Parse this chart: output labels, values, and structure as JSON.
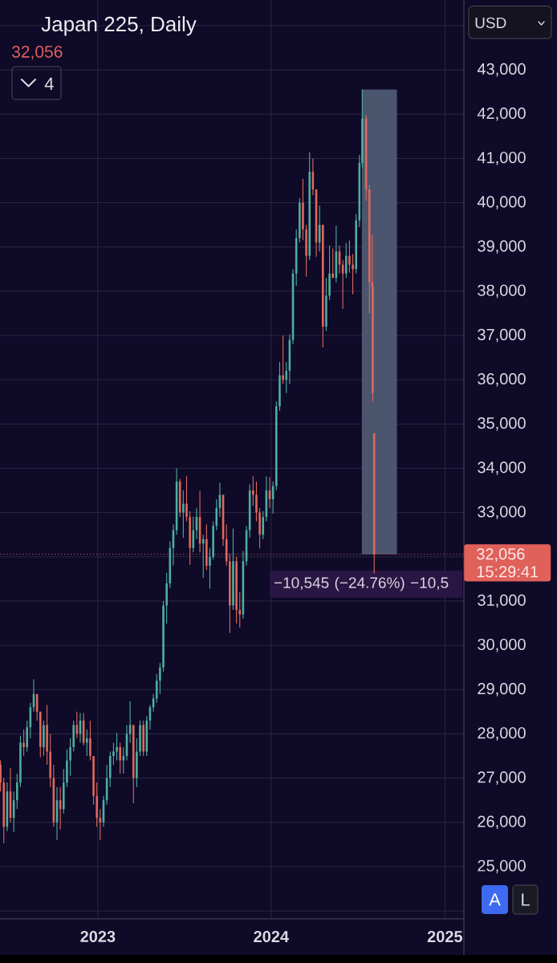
{
  "chart_data": {
    "type": "candlestick",
    "title": "Japan 225, Daily",
    "subtitle": "32,056",
    "annotations": [
      "15:29:41",
      "USD",
      "4",
      "A",
      "L"
    ],
    "x": [
      "2022-06-10",
      "2022-06-17",
      "2022-06-24",
      "2022-07-01",
      "2022-07-08",
      "2022-07-15",
      "2022-07-22",
      "2022-07-29",
      "2022-08-05",
      "2022-08-12",
      "2022-08-19",
      "2022-08-26",
      "2022-09-02",
      "2022-09-09",
      "2022-09-16",
      "2022-09-23",
      "2022-09-30",
      "2022-10-07",
      "2022-10-14",
      "2022-10-21",
      "2022-10-28",
      "2022-11-04",
      "2022-11-11",
      "2022-11-18",
      "2022-11-25",
      "2022-12-02",
      "2022-12-09",
      "2022-12-16",
      "2022-12-23",
      "2022-12-30",
      "2023-01-06",
      "2023-01-13",
      "2023-01-20",
      "2023-01-27",
      "2023-02-03",
      "2023-02-10",
      "2023-02-17",
      "2023-02-24",
      "2023-03-03",
      "2023-03-10",
      "2023-03-17",
      "2023-03-24",
      "2023-03-31",
      "2023-04-07",
      "2023-04-14",
      "2023-04-21",
      "2023-04-28",
      "2023-05-05",
      "2023-05-12",
      "2023-05-19",
      "2023-05-26",
      "2023-06-02",
      "2023-06-09",
      "2023-06-16",
      "2023-06-23",
      "2023-06-30",
      "2023-07-07",
      "2023-07-14",
      "2023-07-21",
      "2023-07-28",
      "2023-08-04",
      "2023-08-11",
      "2023-08-18",
      "2023-08-25",
      "2023-09-01",
      "2023-09-08",
      "2023-09-15",
      "2023-09-22",
      "2023-09-29",
      "2023-10-06",
      "2023-10-13",
      "2023-10-20",
      "2023-10-27",
      "2023-11-03",
      "2023-11-10",
      "2023-11-17",
      "2023-11-24",
      "2023-12-01",
      "2023-12-08",
      "2023-12-15",
      "2023-12-22",
      "2023-12-29",
      "2024-01-05",
      "2024-01-12",
      "2024-01-19",
      "2024-01-26",
      "2024-02-02",
      "2024-02-09",
      "2024-02-16",
      "2024-02-23",
      "2024-03-01",
      "2024-03-08",
      "2024-03-15",
      "2024-03-22",
      "2024-03-29",
      "2024-04-05",
      "2024-04-12",
      "2024-04-19",
      "2024-04-26",
      "2024-05-03",
      "2024-05-10",
      "2024-05-17",
      "2024-05-24",
      "2024-05-31",
      "2024-06-07",
      "2024-06-14",
      "2024-06-21",
      "2024-06-28",
      "2024-07-05",
      "2024-07-11",
      "2024-07-19",
      "2024-07-26",
      "2024-08-01",
      "2024-08-02",
      "2024-08-05"
    ],
    "ohlc": [
      [
        27300,
        27400,
        26700,
        26900
      ],
      [
        26900,
        27000,
        25530,
        25900
      ],
      [
        25900,
        26900,
        25800,
        26700
      ],
      [
        26700,
        27230,
        26000,
        26100
      ],
      [
        26100,
        26700,
        25780,
        26500
      ],
      [
        26500,
        27100,
        26300,
        26900
      ],
      [
        26900,
        27960,
        26800,
        27800
      ],
      [
        27800,
        28100,
        27500,
        27700
      ],
      [
        27700,
        28300,
        27600,
        28150
      ],
      [
        28150,
        28700,
        27900,
        28600
      ],
      [
        28600,
        29230,
        28500,
        28900
      ],
      [
        28900,
        28900,
        28300,
        28500
      ],
      [
        28500,
        28500,
        27470,
        27700
      ],
      [
        27700,
        28300,
        27500,
        28200
      ],
      [
        28200,
        28650,
        27300,
        27600
      ],
      [
        27600,
        28000,
        26800,
        27000
      ],
      [
        27000,
        27300,
        25900,
        26000
      ],
      [
        26000,
        26800,
        25600,
        26500
      ],
      [
        26500,
        26800,
        25840,
        26300
      ],
      [
        26300,
        27200,
        26200,
        26900
      ],
      [
        26900,
        27650,
        26800,
        27400
      ],
      [
        27400,
        27900,
        27050,
        27700
      ],
      [
        27700,
        28300,
        27600,
        28200
      ],
      [
        28200,
        28500,
        27900,
        28000
      ],
      [
        28000,
        28470,
        27800,
        28300
      ],
      [
        28300,
        28470,
        27740,
        27800
      ],
      [
        27800,
        28100,
        27500,
        27900
      ],
      [
        27900,
        28300,
        27400,
        27500
      ],
      [
        27500,
        27500,
        26400,
        26600
      ],
      [
        26600,
        26900,
        25900,
        26100
      ],
      [
        26100,
        26300,
        25600,
        26000
      ],
      [
        26000,
        26600,
        25900,
        26500
      ],
      [
        26500,
        27300,
        26400,
        27000
      ],
      [
        27000,
        27600,
        26800,
        27500
      ],
      [
        27500,
        27800,
        27300,
        27600
      ],
      [
        27600,
        28020,
        27400,
        27700
      ],
      [
        27700,
        27800,
        27100,
        27400
      ],
      [
        27400,
        27700,
        27100,
        27500
      ],
      [
        27500,
        28200,
        27400,
        28000
      ],
      [
        28000,
        28740,
        27800,
        28200
      ],
      [
        28200,
        28200,
        26430,
        27000
      ],
      [
        27000,
        27900,
        26800,
        27600
      ],
      [
        27600,
        28300,
        27500,
        28200
      ],
      [
        28200,
        28300,
        27500,
        27600
      ],
      [
        27600,
        28400,
        27500,
        28300
      ],
      [
        28300,
        28650,
        28100,
        28600
      ],
      [
        28600,
        28900,
        28500,
        28800
      ],
      [
        28800,
        29350,
        28700,
        29200
      ],
      [
        29200,
        29600,
        28900,
        29500
      ],
      [
        29500,
        31000,
        29400,
        30900
      ],
      [
        30900,
        31640,
        30490,
        31400
      ],
      [
        31400,
        32350,
        31300,
        32200
      ],
      [
        32200,
        32730,
        31800,
        32600
      ],
      [
        32600,
        34000,
        32500,
        33700
      ],
      [
        33700,
        33760,
        32900,
        33000
      ],
      [
        33000,
        33500,
        32430,
        33200
      ],
      [
        33200,
        33820,
        32800,
        32900
      ],
      [
        32900,
        33030,
        31820,
        32200
      ],
      [
        32200,
        32910,
        32100,
        32600
      ],
      [
        32600,
        33100,
        32400,
        32900
      ],
      [
        32900,
        33490,
        32100,
        32300
      ],
      [
        32300,
        32500,
        31520,
        32400
      ],
      [
        32400,
        32730,
        31700,
        31800
      ],
      [
        31800,
        32200,
        31280,
        32000
      ],
      [
        32000,
        32800,
        31940,
        32700
      ],
      [
        32700,
        33300,
        32600,
        33100
      ],
      [
        33100,
        33670,
        32900,
        33400
      ],
      [
        33400,
        33400,
        32250,
        32400
      ],
      [
        32400,
        32730,
        31800,
        31900
      ],
      [
        31900,
        32070,
        30280,
        30900
      ],
      [
        30900,
        32640,
        30800,
        31900
      ],
      [
        31900,
        32000,
        30490,
        30800
      ],
      [
        30800,
        31200,
        30400,
        30700
      ],
      [
        30700,
        32130,
        30600,
        31900
      ],
      [
        31900,
        32700,
        31800,
        32600
      ],
      [
        32600,
        33640,
        32430,
        33500
      ],
      [
        33500,
        33820,
        33150,
        33400
      ],
      [
        33400,
        33700,
        32800,
        33000
      ],
      [
        33000,
        33100,
        32190,
        32500
      ],
      [
        32500,
        33030,
        32400,
        32900
      ],
      [
        32900,
        33820,
        32800,
        33500
      ],
      [
        33500,
        33800,
        33100,
        33300
      ],
      [
        33300,
        33700,
        32970,
        33600
      ],
      [
        33600,
        35510,
        33500,
        35400
      ],
      [
        35400,
        36400,
        35300,
        36100
      ],
      [
        36100,
        37000,
        35900,
        36000
      ],
      [
        36000,
        36400,
        35700,
        36200
      ],
      [
        36200,
        37030,
        35900,
        36900
      ],
      [
        36900,
        38500,
        36800,
        38400
      ],
      [
        38400,
        39400,
        38120,
        39200
      ],
      [
        39200,
        40100,
        39100,
        40000
      ],
      [
        40000,
        40540,
        39150,
        39400
      ],
      [
        39400,
        39500,
        38330,
        38800
      ],
      [
        38800,
        41140,
        38700,
        40700
      ],
      [
        40700,
        41000,
        40170,
        40300
      ],
      [
        40300,
        40300,
        38780,
        39100
      ],
      [
        39100,
        39940,
        38900,
        39500
      ],
      [
        39500,
        39500,
        36730,
        37200
      ],
      [
        37200,
        38300,
        37100,
        37900
      ],
      [
        37900,
        39030,
        37800,
        38400
      ],
      [
        38400,
        38970,
        38300,
        38300
      ],
      [
        38300,
        39480,
        38200,
        38900
      ],
      [
        38900,
        39030,
        38400,
        38600
      ],
      [
        38600,
        38700,
        37600,
        38400
      ],
      [
        38400,
        39090,
        38300,
        38800
      ],
      [
        38800,
        39150,
        38420,
        38600
      ],
      [
        38600,
        38840,
        37930,
        38500
      ],
      [
        38500,
        39750,
        38400,
        39600
      ],
      [
        39600,
        41080,
        39450,
        40900
      ],
      [
        40900,
        42560,
        40800,
        41900
      ],
      [
        41900,
        41980,
        40050,
        40300
      ],
      [
        40300,
        40400,
        37500,
        38200
      ],
      [
        38200,
        39270,
        37900,
        38100
      ],
      [
        38100,
        38200,
        35500,
        35700
      ],
      [
        34790,
        34790,
        31620,
        32056
      ]
    ],
    "colors": [
      "#e0685c",
      "#e0685c",
      "#4fae9f",
      "#e0685c",
      "#4fae9f",
      "#4fae9f",
      "#4fae9f",
      "#e0685c",
      "#4fae9f",
      "#4fae9f",
      "#4fae9f",
      "#e0685c",
      "#e0685c",
      "#4fae9f",
      "#e0685c",
      "#e0685c",
      "#e0685c",
      "#4fae9f",
      "#e0685c",
      "#4fae9f",
      "#4fae9f",
      "#4fae9f",
      "#4fae9f",
      "#e0685c",
      "#4fae9f",
      "#e0685c",
      "#4fae9f",
      "#e0685c",
      "#e0685c",
      "#e0685c",
      "#e0685c",
      "#4fae9f",
      "#4fae9f",
      "#4fae9f",
      "#4fae9f",
      "#4fae9f",
      "#e0685c",
      "#4fae9f",
      "#4fae9f",
      "#4fae9f",
      "#e0685c",
      "#4fae9f",
      "#4fae9f",
      "#e0685c",
      "#4fae9f",
      "#4fae9f",
      "#4fae9f",
      "#4fae9f",
      "#4fae9f",
      "#4fae9f",
      "#4fae9f",
      "#4fae9f",
      "#4fae9f",
      "#4fae9f",
      "#e0685c",
      "#4fae9f",
      "#e0685c",
      "#e0685c",
      "#4fae9f",
      "#4fae9f",
      "#e0685c",
      "#4fae9f",
      "#e0685c",
      "#4fae9f",
      "#4fae9f",
      "#4fae9f",
      "#4fae9f",
      "#e0685c",
      "#e0685c",
      "#e0685c",
      "#4fae9f",
      "#e0685c",
      "#e0685c",
      "#4fae9f",
      "#4fae9f",
      "#4fae9f",
      "#e0685c",
      "#e0685c",
      "#e0685c",
      "#4fae9f",
      "#4fae9f",
      "#e0685c",
      "#4fae9f",
      "#4fae9f",
      "#4fae9f",
      "#e0685c",
      "#4fae9f",
      "#4fae9f",
      "#4fae9f",
      "#4fae9f",
      "#4fae9f",
      "#e0685c",
      "#e0685c",
      "#4fae9f",
      "#e0685c",
      "#e0685c",
      "#4fae9f",
      "#e0685c",
      "#4fae9f",
      "#4fae9f",
      "#e0685c",
      "#4fae9f",
      "#e0685c",
      "#e0685c",
      "#4fae9f",
      "#e0685c",
      "#e0685c",
      "#4fae9f",
      "#4fae9f",
      "#4fae9f",
      "#e0685c",
      "#e0685c",
      "#e0685c",
      "#e0685c",
      "#e0685c"
    ],
    "xlim": [
      "2022-06-09",
      "2025-02-10"
    ],
    "ylim": [
      23820,
      44580
    ],
    "xticks": [
      {
        "value": "2023-01-01",
        "label": "2023"
      },
      {
        "value": "2024-01-01",
        "label": "2024"
      },
      {
        "value": "2025-01-01",
        "label": "2025"
      }
    ],
    "yticks": [
      {
        "value": 24000,
        "label": null
      },
      {
        "value": 25000,
        "label": "25,000"
      },
      {
        "value": 26000,
        "label": "26,000"
      },
      {
        "value": 27000,
        "label": "27,000"
      },
      {
        "value": 28000,
        "label": "28,000"
      },
      {
        "value": 29000,
        "label": "29,000"
      },
      {
        "value": 30000,
        "label": "30,000"
      },
      {
        "value": 31000,
        "label": "31,000"
      },
      {
        "value": 32000,
        "label": null
      },
      {
        "value": 33000,
        "label": "33,000"
      },
      {
        "value": 34000,
        "label": "34,000"
      },
      {
        "value": 35000,
        "label": "35,000"
      },
      {
        "value": 36000,
        "label": "36,000"
      },
      {
        "value": 37000,
        "label": "37,000"
      },
      {
        "value": 38000,
        "label": "38,000"
      },
      {
        "value": 39000,
        "label": "39,000"
      },
      {
        "value": 40000,
        "label": "40,000"
      },
      {
        "value": 41000,
        "label": "41,000"
      },
      {
        "value": 42000,
        "label": "42,000"
      },
      {
        "value": 43000,
        "label": "43,000"
      },
      {
        "value": 44000,
        "label": null
      }
    ],
    "grid": true,
    "ref_lines": [
      {
        "axis": "y",
        "value": 32056,
        "label": "32,056",
        "color": "#e0605a",
        "line_style": "dotted"
      }
    ],
    "bands": [
      {
        "axis": "x",
        "from": "2024-07-10",
        "to": "2024-09-22",
        "label": "−10,545 (−24.76%) −10,5",
        "color": "#4b556e"
      }
    ]
  }
}
